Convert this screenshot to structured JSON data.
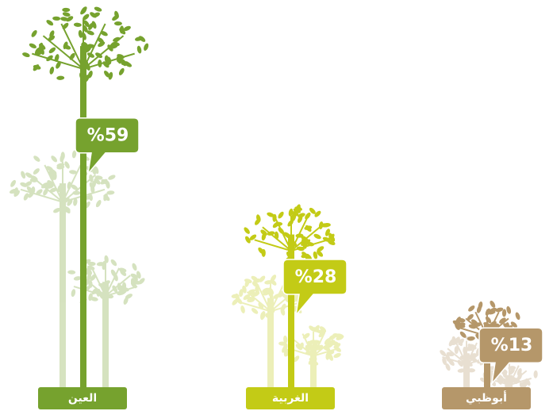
{
  "chart_data": {
    "type": "pictorial-tree",
    "categories": [
      "العين",
      "الغربية",
      "أبوظبي"
    ],
    "values": [
      59,
      28,
      13
    ],
    "value_labels": [
      "%59",
      "%28",
      "%13"
    ],
    "colors": [
      "#76a22e",
      "#c3cb16",
      "#b5976a"
    ]
  }
}
